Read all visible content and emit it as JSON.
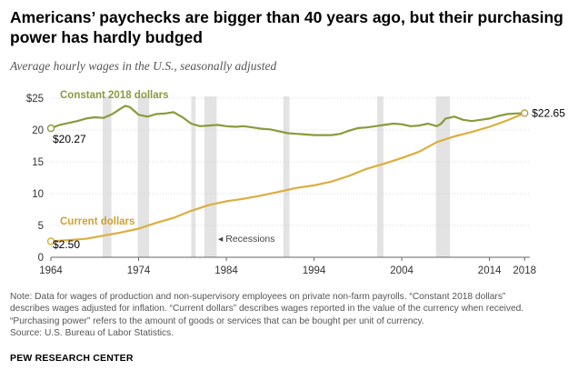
{
  "title": "Americans’ paychecks are bigger than 40 years ago, but their purchasing power has hardly budged",
  "subtitle": "Average hourly wages in the U.S., seasonally adjusted",
  "notes": [
    "Note: Data for wages of production and non-supervisory employees on private non-farm payrolls. “Constant 2018 dollars”",
    "describes wages adjusted for inflation. “Current dollars” describes wages reported in the value of the currency when received.",
    "“Purchasing power” refers to the amount of goods or services that can be bought per unit of currency."
  ],
  "source": "Source: U.S. Bureau of Labor Statistics.",
  "brand": "PEW RESEARCH CENTER",
  "chart_data": {
    "type": "line",
    "title": "Average hourly wages in the U.S., seasonally adjusted",
    "xlim": [
      1964,
      2018.6
    ],
    "ylim": [
      0,
      25
    ],
    "grid": true,
    "x_ticks": [
      1964,
      1974,
      1984,
      1994,
      2004,
      2014,
      2018
    ],
    "y_ticks": [
      0,
      5,
      10,
      15,
      20,
      25
    ],
    "y_tick_labels": [
      "0",
      "5",
      "10",
      "15",
      "20",
      "$25"
    ],
    "recessions": [
      [
        1969.9,
        1970.9
      ],
      [
        1973.9,
        1975.2
      ],
      [
        1980.0,
        1980.5
      ],
      [
        1981.5,
        1982.9
      ],
      [
        1990.5,
        1991.2
      ],
      [
        2001.2,
        2001.9
      ],
      [
        2007.9,
        2009.5
      ]
    ],
    "recession_label": "Recessions",
    "series": [
      {
        "name": "Constant 2018 dollars",
        "color": "#8a9a3c",
        "start_label": "$20.27",
        "x": [
          1964,
          1965,
          1966,
          1967,
          1968,
          1969,
          1970,
          1971,
          1972,
          1972.5,
          1973,
          1973.5,
          1974,
          1975,
          1976,
          1977,
          1978,
          1979,
          1980,
          1981,
          1982,
          1983,
          1984,
          1985,
          1986,
          1987,
          1988,
          1989,
          1990,
          1991,
          1992,
          1993,
          1994,
          1995,
          1996,
          1997,
          1998,
          1999,
          2000,
          2001,
          2002,
          2003,
          2004,
          2005,
          2006,
          2007,
          2008,
          2008.5,
          2009,
          2010,
          2011,
          2012,
          2013,
          2014,
          2015,
          2016,
          2017,
          2018
        ],
        "values": [
          20.27,
          20.8,
          21.1,
          21.4,
          21.8,
          22.0,
          21.9,
          22.5,
          23.4,
          23.8,
          23.6,
          23.0,
          22.4,
          22.1,
          22.5,
          22.6,
          22.8,
          22.0,
          21.0,
          20.6,
          20.7,
          20.8,
          20.6,
          20.5,
          20.6,
          20.4,
          20.2,
          20.1,
          19.8,
          19.5,
          19.4,
          19.3,
          19.2,
          19.2,
          19.2,
          19.4,
          19.9,
          20.3,
          20.4,
          20.6,
          20.8,
          21.0,
          20.9,
          20.6,
          20.7,
          21.0,
          20.6,
          21.0,
          21.8,
          22.1,
          21.6,
          21.4,
          21.6,
          21.8,
          22.2,
          22.5,
          22.6,
          22.65
        ],
        "end_label": "$22.65"
      },
      {
        "name": "Current dollars",
        "color": "#dcae3e",
        "start_label": "$2.50",
        "x": [
          1964,
          1966,
          1968,
          1970,
          1972,
          1974,
          1976,
          1978,
          1980,
          1982,
          1984,
          1986,
          1988,
          1990,
          1992,
          1994,
          1996,
          1998,
          2000,
          2002,
          2004,
          2006,
          2008,
          2010,
          2012,
          2014,
          2016,
          2018
        ],
        "values": [
          2.5,
          2.7,
          2.9,
          3.4,
          3.9,
          4.5,
          5.4,
          6.2,
          7.3,
          8.2,
          8.8,
          9.2,
          9.7,
          10.3,
          10.9,
          11.3,
          11.9,
          12.8,
          13.9,
          14.7,
          15.6,
          16.6,
          18.1,
          19.0,
          19.7,
          20.5,
          21.5,
          22.65
        ]
      }
    ]
  }
}
